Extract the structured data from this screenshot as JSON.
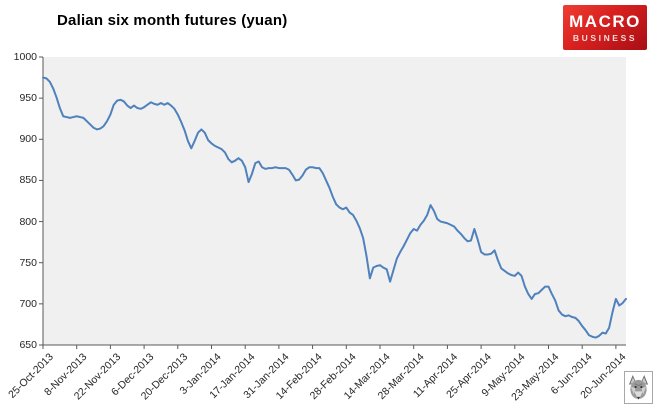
{
  "title": "Dalian six month futures (yuan)",
  "logo": {
    "line1": "MACRO",
    "line2": "BUSINESS"
  },
  "colors": {
    "line": "#4f81bd",
    "plot_bg": "#f0f0f0",
    "axis": "#595959",
    "label": "#262626",
    "logo_red": "#d6201f"
  },
  "watermark": {
    "icon": "wolf-logo"
  },
  "chart_data": {
    "type": "line",
    "title": "Dalian six month futures (yuan)",
    "ylabel": "",
    "xlabel": "",
    "ylim": [
      650,
      1000
    ],
    "yticks": [
      650,
      700,
      750,
      800,
      850,
      900,
      950,
      1000
    ],
    "grid": false,
    "legend": "none",
    "xtick_every_n_points": 10,
    "xtick_labels": [
      "25-Oct-2013",
      "8-Nov-2013",
      "22-Nov-2013",
      "6-Dec-2013",
      "20-Dec-2013",
      "3-Jan-2014",
      "17-Jan-2014",
      "31-Jan-2014",
      "14-Feb-2014",
      "28-Feb-2014",
      "14-Mar-2014",
      "28-Mar-2014",
      "11-Apr-2014",
      "25-Apr-2014",
      "9-May-2014",
      "23-May-2014",
      "6-Jun-2014",
      "20-Jun-2014"
    ],
    "series": [
      {
        "name": "Dalian six month futures (yuan)",
        "values": [
          975,
          974,
          970,
          962,
          951,
          938,
          928,
          927,
          926,
          927,
          928,
          927,
          926,
          922,
          918,
          914,
          912,
          913,
          916,
          922,
          930,
          942,
          947,
          948,
          946,
          941,
          938,
          941,
          938,
          937,
          939,
          942,
          945,
          943,
          942,
          944,
          942,
          944,
          941,
          937,
          930,
          921,
          911,
          898,
          889,
          898,
          908,
          912,
          908,
          899,
          895,
          892,
          890,
          888,
          884,
          876,
          872,
          874,
          877,
          874,
          866,
          848,
          858,
          871,
          873,
          866,
          864,
          865,
          865,
          866,
          865,
          865,
          865,
          863,
          857,
          850,
          851,
          856,
          863,
          866,
          866,
          865,
          865,
          859,
          850,
          841,
          830,
          821,
          817,
          815,
          817,
          811,
          808,
          801,
          792,
          780,
          758,
          731,
          744,
          746,
          747,
          744,
          742,
          727,
          741,
          755,
          763,
          770,
          778,
          786,
          791,
          789,
          796,
          801,
          808,
          820,
          813,
          803,
          800,
          799,
          798,
          796,
          794,
          789,
          785,
          780,
          776,
          777,
          791,
          778,
          763,
          760,
          760,
          761,
          765,
          753,
          743,
          740,
          737,
          735,
          734,
          738,
          734,
          721,
          712,
          706,
          712,
          713,
          717,
          721,
          721,
          712,
          704,
          692,
          687,
          685,
          686,
          684,
          683,
          679,
          673,
          668,
          662,
          660,
          659,
          661,
          665,
          664,
          671,
          690,
          706,
          698,
          701,
          706
        ]
      }
    ]
  }
}
